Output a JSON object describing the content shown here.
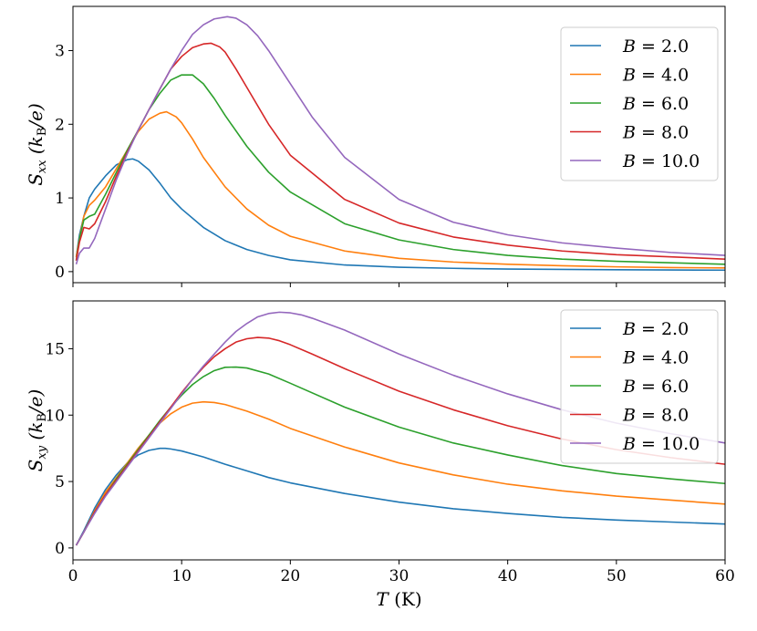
{
  "chart_data": [
    {
      "type": "line",
      "panel": "top",
      "ylabel": {
        "main": "S",
        "sub": "xx",
        "unit_open": " (k",
        "unit_sub": "B",
        "unit_close": "/e)"
      },
      "xlim": [
        0,
        60
      ],
      "ylim": [
        -0.15,
        3.6
      ],
      "xticks": [
        0,
        10,
        20,
        30,
        40,
        50,
        60
      ],
      "yticks": [
        0,
        1,
        2,
        3
      ],
      "show_xtick_labels": false,
      "grid": false,
      "legend_position": "top-right",
      "series": [
        {
          "name": "B = 2.0",
          "color": "#1f77b4",
          "x": [
            0.3,
            0.6,
            1.0,
            1.5,
            2.0,
            3.0,
            4.0,
            5.0,
            5.5,
            6.0,
            7.0,
            8.0,
            9.0,
            10.0,
            12.0,
            14.0,
            16.0,
            18.0,
            20.0,
            25.0,
            30.0,
            35.0,
            40.0,
            45.0,
            50.0,
            55.0,
            60.0
          ],
          "y": [
            0.2,
            0.5,
            0.75,
            1.0,
            1.12,
            1.3,
            1.45,
            1.52,
            1.53,
            1.5,
            1.38,
            1.2,
            1.0,
            0.85,
            0.6,
            0.42,
            0.3,
            0.22,
            0.16,
            0.09,
            0.06,
            0.045,
            0.035,
            0.03,
            0.025,
            0.022,
            0.02
          ]
        },
        {
          "name": "B = 4.0",
          "color": "#ff7f0e",
          "x": [
            0.3,
            0.6,
            1.0,
            1.5,
            2.0,
            3.0,
            4.0,
            5.0,
            6.0,
            7.0,
            8.0,
            8.6,
            9.5,
            10.0,
            11.0,
            12.0,
            14.0,
            16.0,
            18.0,
            20.0,
            25.0,
            30.0,
            35.0,
            40.0,
            45.0,
            50.0,
            55.0,
            60.0
          ],
          "y": [
            0.2,
            0.45,
            0.75,
            0.9,
            0.97,
            1.15,
            1.4,
            1.65,
            1.9,
            2.07,
            2.15,
            2.17,
            2.1,
            2.02,
            1.8,
            1.55,
            1.15,
            0.85,
            0.63,
            0.48,
            0.28,
            0.18,
            0.13,
            0.1,
            0.08,
            0.065,
            0.055,
            0.05
          ]
        },
        {
          "name": "B = 6.0",
          "color": "#2ca02c",
          "x": [
            0.3,
            0.6,
            1.0,
            1.5,
            2.0,
            3.0,
            4.0,
            5.0,
            6.0,
            7.0,
            8.0,
            9.0,
            10.0,
            11.0,
            12.0,
            13.0,
            14.0,
            16.0,
            18.0,
            20.0,
            25.0,
            30.0,
            35.0,
            40.0,
            45.0,
            50.0,
            55.0,
            60.0
          ],
          "y": [
            0.15,
            0.45,
            0.7,
            0.75,
            0.78,
            1.05,
            1.35,
            1.65,
            1.92,
            2.2,
            2.42,
            2.6,
            2.67,
            2.67,
            2.55,
            2.35,
            2.12,
            1.7,
            1.35,
            1.08,
            0.65,
            0.43,
            0.3,
            0.22,
            0.17,
            0.14,
            0.12,
            0.1
          ]
        },
        {
          "name": "B = 8.0",
          "color": "#d62728",
          "x": [
            0.3,
            0.6,
            1.0,
            1.5,
            2.0,
            3.0,
            4.0,
            5.0,
            6.0,
            7.0,
            8.0,
            9.0,
            10.0,
            11.0,
            12.0,
            12.7,
            13.5,
            14.0,
            15.0,
            16.0,
            18.0,
            20.0,
            25.0,
            30.0,
            35.0,
            40.0,
            45.0,
            50.0,
            55.0,
            60.0
          ],
          "y": [
            0.15,
            0.4,
            0.6,
            0.58,
            0.65,
            0.95,
            1.3,
            1.62,
            1.92,
            2.2,
            2.48,
            2.75,
            2.92,
            3.04,
            3.09,
            3.1,
            3.05,
            2.98,
            2.75,
            2.5,
            2.0,
            1.58,
            0.98,
            0.66,
            0.47,
            0.36,
            0.28,
            0.23,
            0.2,
            0.17
          ]
        },
        {
          "name": "B = 10.0",
          "color": "#9467bd",
          "x": [
            0.3,
            0.6,
            1.0,
            1.5,
            2.0,
            3.0,
            4.0,
            5.0,
            6.0,
            7.0,
            8.0,
            9.0,
            10.0,
            11.0,
            12.0,
            13.0,
            14.2,
            15.0,
            16.0,
            17.0,
            18.0,
            20.0,
            22.0,
            25.0,
            30.0,
            35.0,
            40.0,
            45.0,
            50.0,
            55.0,
            60.0
          ],
          "y": [
            0.1,
            0.25,
            0.32,
            0.32,
            0.45,
            0.85,
            1.25,
            1.6,
            1.92,
            2.2,
            2.48,
            2.75,
            3.0,
            3.22,
            3.35,
            3.43,
            3.46,
            3.44,
            3.35,
            3.2,
            3.0,
            2.55,
            2.1,
            1.55,
            0.98,
            0.67,
            0.5,
            0.39,
            0.32,
            0.26,
            0.22
          ]
        }
      ]
    },
    {
      "type": "line",
      "panel": "bottom",
      "ylabel": {
        "main": "S",
        "sub": "xy",
        "unit_open": " (k",
        "unit_sub": "B",
        "unit_close": "/e)"
      },
      "xlabel": {
        "main": "T",
        "unit": " (K)"
      },
      "xlim": [
        0,
        60
      ],
      "ylim": [
        -0.9,
        18.6
      ],
      "xticks": [
        0,
        10,
        20,
        30,
        40,
        50,
        60
      ],
      "yticks": [
        0,
        5,
        10,
        15
      ],
      "show_xtick_labels": true,
      "grid": false,
      "legend_position": "top-right",
      "series": [
        {
          "name": "B = 2.0",
          "color": "#1f77b4",
          "x": [
            0.3,
            1.0,
            2.0,
            3.0,
            4.0,
            5.0,
            6.0,
            7.0,
            8.0,
            8.5,
            9.0,
            10.0,
            12.0,
            14.0,
            16.0,
            18.0,
            20.0,
            25.0,
            30.0,
            35.0,
            40.0,
            45.0,
            50.0,
            55.0,
            60.0
          ],
          "y": [
            0.2,
            1.3,
            3.0,
            4.4,
            5.5,
            6.4,
            7.0,
            7.35,
            7.5,
            7.5,
            7.45,
            7.3,
            6.85,
            6.3,
            5.8,
            5.3,
            4.9,
            4.1,
            3.45,
            2.95,
            2.6,
            2.3,
            2.1,
            1.95,
            1.8
          ]
        },
        {
          "name": "B = 4.0",
          "color": "#ff7f0e",
          "x": [
            0.3,
            1.0,
            2.0,
            3.0,
            4.0,
            5.0,
            6.0,
            7.0,
            8.0,
            9.0,
            10.0,
            11.0,
            12.0,
            13.0,
            14.0,
            16.0,
            18.0,
            20.0,
            25.0,
            30.0,
            35.0,
            40.0,
            45.0,
            50.0,
            55.0,
            60.0
          ],
          "y": [
            0.2,
            1.2,
            2.8,
            4.2,
            5.3,
            6.4,
            7.5,
            8.5,
            9.4,
            10.1,
            10.6,
            10.9,
            11.0,
            10.95,
            10.8,
            10.3,
            9.7,
            9.0,
            7.6,
            6.4,
            5.5,
            4.8,
            4.3,
            3.9,
            3.6,
            3.3
          ]
        },
        {
          "name": "B = 6.0",
          "color": "#2ca02c",
          "x": [
            0.3,
            1.0,
            2.0,
            3.0,
            4.0,
            5.0,
            6.0,
            7.0,
            8.0,
            9.0,
            10.0,
            11.0,
            12.0,
            13.0,
            14.0,
            15.0,
            16.0,
            18.0,
            20.0,
            25.0,
            30.0,
            35.0,
            40.0,
            45.0,
            50.0,
            55.0,
            60.0
          ],
          "y": [
            0.2,
            1.2,
            2.7,
            4.0,
            5.2,
            6.3,
            7.4,
            8.5,
            9.6,
            10.6,
            11.5,
            12.3,
            12.9,
            13.35,
            13.6,
            13.62,
            13.55,
            13.1,
            12.4,
            10.6,
            9.1,
            7.9,
            7.0,
            6.2,
            5.6,
            5.2,
            4.85
          ]
        },
        {
          "name": "B = 8.0",
          "color": "#d62728",
          "x": [
            0.3,
            1.0,
            2.0,
            3.0,
            4.0,
            5.0,
            6.0,
            7.0,
            8.0,
            9.0,
            10.0,
            11.0,
            12.0,
            13.0,
            14.0,
            15.0,
            16.0,
            17.0,
            18.0,
            19.0,
            20.0,
            22.0,
            25.0,
            30.0,
            35.0,
            40.0,
            45.0,
            50.0,
            55.0,
            60.0
          ],
          "y": [
            0.2,
            1.2,
            2.7,
            4.0,
            5.1,
            6.2,
            7.3,
            8.4,
            9.5,
            10.6,
            11.7,
            12.7,
            13.6,
            14.4,
            15.0,
            15.5,
            15.75,
            15.85,
            15.8,
            15.6,
            15.3,
            14.6,
            13.5,
            11.8,
            10.4,
            9.2,
            8.2,
            7.4,
            6.8,
            6.3
          ]
        },
        {
          "name": "B = 10.0",
          "color": "#9467bd",
          "x": [
            0.3,
            1.0,
            2.0,
            3.0,
            4.0,
            5.0,
            6.0,
            7.0,
            8.0,
            9.0,
            10.0,
            11.0,
            12.0,
            13.0,
            14.0,
            15.0,
            16.0,
            17.0,
            18.0,
            19.0,
            20.0,
            21.0,
            22.0,
            25.0,
            30.0,
            35.0,
            40.0,
            45.0,
            50.0,
            55.0,
            60.0
          ],
          "y": [
            0.2,
            1.2,
            2.6,
            3.9,
            5.0,
            6.1,
            7.2,
            8.3,
            9.4,
            10.5,
            11.6,
            12.7,
            13.7,
            14.6,
            15.5,
            16.3,
            16.9,
            17.4,
            17.65,
            17.75,
            17.7,
            17.55,
            17.3,
            16.4,
            14.6,
            13.0,
            11.6,
            10.4,
            9.4,
            8.6,
            7.9
          ]
        }
      ]
    }
  ]
}
